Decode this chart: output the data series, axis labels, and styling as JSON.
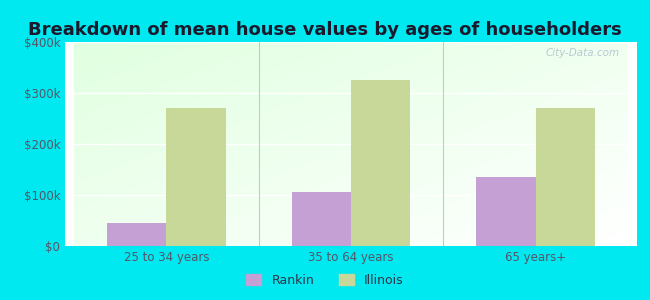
{
  "title": "Breakdown of mean house values by ages of householders",
  "categories": [
    "25 to 34 years",
    "35 to 64 years",
    "65 years+"
  ],
  "rankin_values": [
    45000,
    105000,
    135000
  ],
  "illinois_values": [
    270000,
    325000,
    270000
  ],
  "rankin_color": "#c4a0d4",
  "illinois_color": "#c8d898",
  "background_outer": "#00e8f0",
  "ylim": [
    0,
    400000
  ],
  "yticks": [
    0,
    100000,
    200000,
    300000,
    400000
  ],
  "ytick_labels": [
    "$0",
    "$100k",
    "$200k",
    "$300k",
    "$400k"
  ],
  "bar_width": 0.32,
  "legend_labels": [
    "Rankin",
    "Illinois"
  ],
  "title_fontsize": 13,
  "tick_fontsize": 8.5,
  "legend_fontsize": 9,
  "grid_color": "#d8f0d8",
  "watermark_text": "City-Data.com"
}
